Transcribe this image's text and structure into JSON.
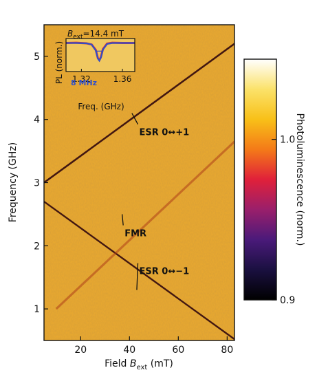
{
  "chart_data": [
    {
      "type": "heatmap",
      "xlabel_main": "Field ",
      "xlabel_var": "B",
      "xlabel_sub": "ext",
      "xlabel_unit": " (mT)",
      "ylabel": "Frequency (GHz)",
      "xlim": [
        5,
        83
      ],
      "ylim": [
        0.5,
        5.5
      ],
      "xticks": [
        20,
        40,
        60,
        80
      ],
      "yticks": [
        1,
        2,
        3,
        4,
        5
      ],
      "background_color": "#e8a830",
      "lines": [
        {
          "label": "ESR 0↔+1",
          "x": [
            5,
            83
          ],
          "y": [
            3.0,
            5.2
          ]
        },
        {
          "label": "ESR 0↔−1",
          "x": [
            5,
            83
          ],
          "y": [
            2.7,
            0.52
          ]
        },
        {
          "label": "FMR",
          "x": [
            10,
            83
          ],
          "y": [
            1.0,
            3.65
          ]
        }
      ],
      "annotations": [
        {
          "text": "ESR 0↔+1",
          "x": 44,
          "y": 3.75,
          "pointer": [
            41,
            4.1
          ]
        },
        {
          "text": "FMR",
          "x": 38,
          "y": 2.15,
          "pointer": [
            37,
            2.5
          ]
        },
        {
          "text": "ESR 0↔−1",
          "x": 44,
          "y": 1.55,
          "pointer": [
            43,
            1.3
          ]
        }
      ],
      "colorbar": {
        "label": "Photoluminescence (norm.)",
        "range": [
          0.9,
          1.05
        ],
        "ticks": [
          0.9,
          1.0
        ],
        "tick_labels": [
          "0.9",
          "1.0"
        ],
        "colormap": [
          "#000000",
          "#1a1040",
          "#4a1a7a",
          "#9a1f6b",
          "#e0203a",
          "#f47a18",
          "#f8c018",
          "#fbe26a",
          "#ffffff"
        ]
      }
    },
    {
      "type": "line",
      "title_var": "B",
      "title_sub": "ext",
      "title_value": "=14.4 mT",
      "xlabel": "Freq. (GHz)",
      "ylabel": "PL (norm.)",
      "xlim": [
        1.305,
        1.372
      ],
      "ylim": [
        0,
        1.1
      ],
      "xticks": [
        1.32,
        1.36
      ],
      "xtick_labels": [
        "1.32",
        "1.36"
      ],
      "annotation": "8 MHz",
      "series": [
        {
          "color": "#e03030",
          "x": [
            1.305,
            1.315,
            1.325,
            1.33,
            1.334,
            1.336,
            1.3375,
            1.339,
            1.341,
            1.345,
            1.35,
            1.36,
            1.372
          ],
          "y": [
            0.95,
            0.96,
            0.94,
            0.9,
            0.72,
            0.45,
            0.38,
            0.48,
            0.75,
            0.93,
            0.96,
            0.95,
            0.95
          ]
        },
        {
          "color": "#3050c8",
          "x": [
            1.305,
            1.315,
            1.325,
            1.33,
            1.334,
            1.336,
            1.3375,
            1.339,
            1.341,
            1.345,
            1.35,
            1.36,
            1.372
          ],
          "y": [
            0.95,
            0.95,
            0.94,
            0.9,
            0.7,
            0.43,
            0.36,
            0.46,
            0.73,
            0.92,
            0.95,
            0.95,
            0.95
          ]
        }
      ]
    }
  ]
}
